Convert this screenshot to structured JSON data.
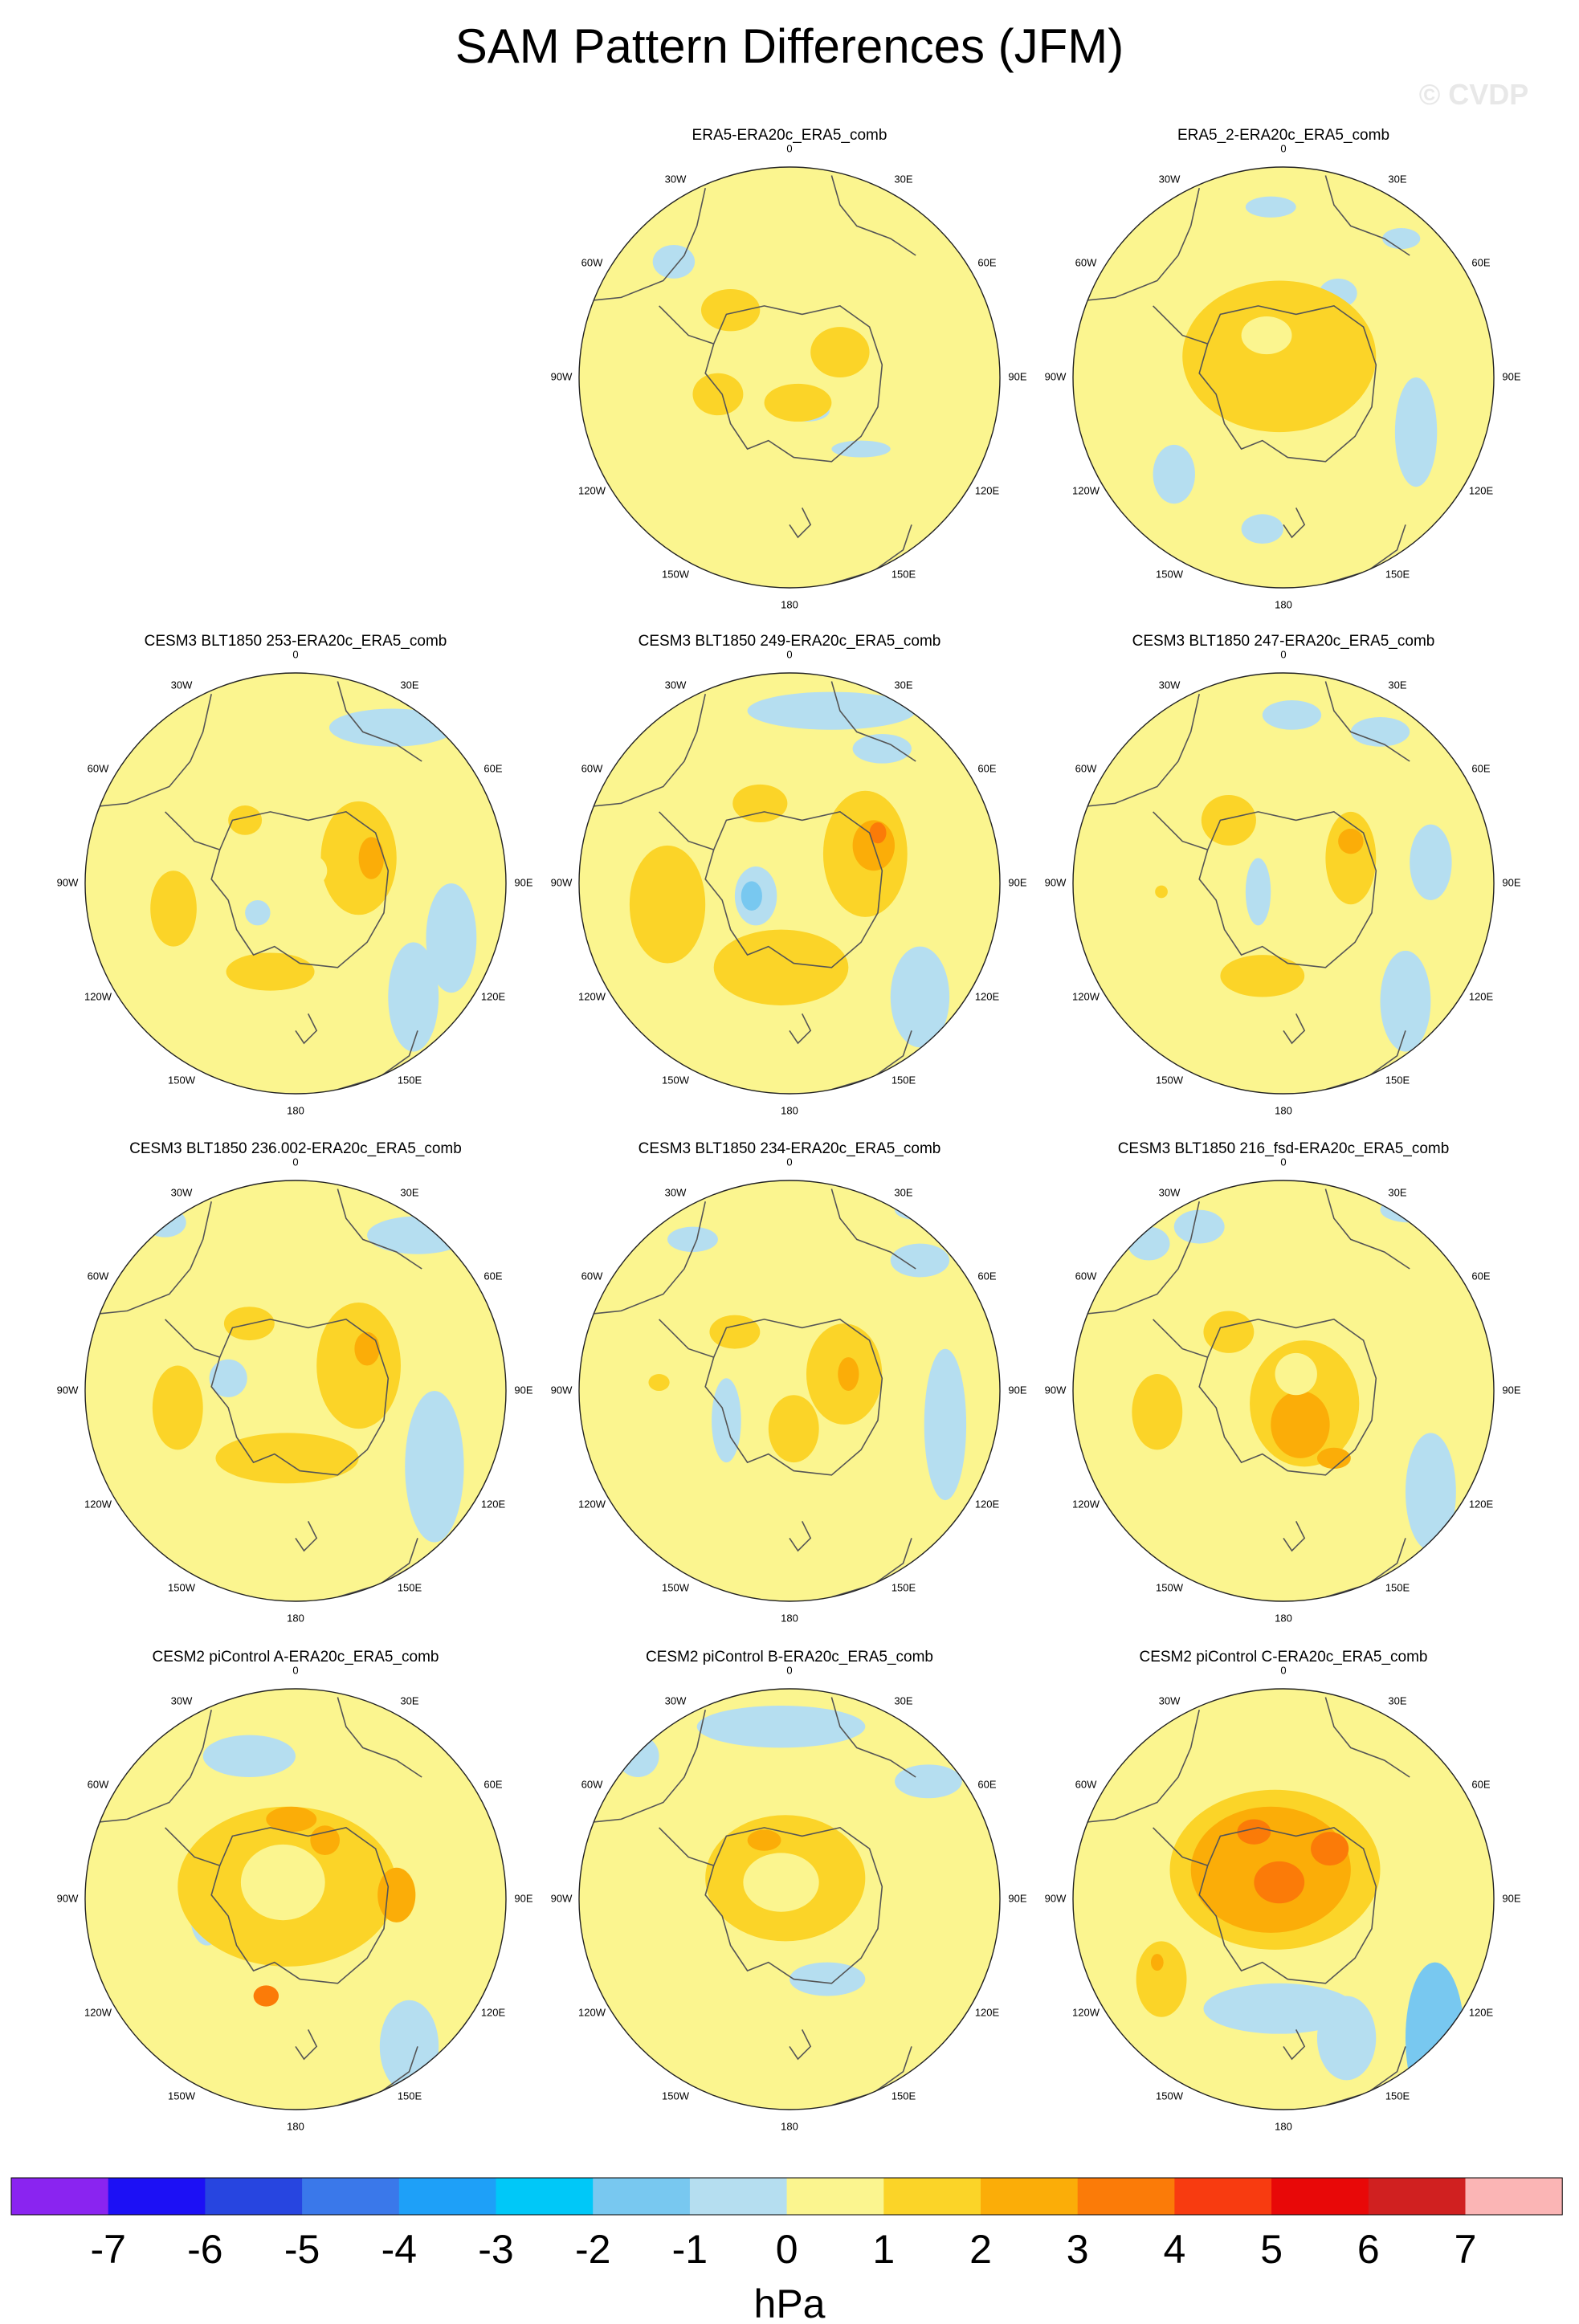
{
  "figure": {
    "title": "SAM Pattern Differences (JFM)",
    "watermark": "© CVDP",
    "units": "hPa"
  },
  "colorbar": {
    "labels": [
      "-7",
      "-6",
      "-5",
      "-4",
      "-3",
      "-2",
      "-1",
      "0",
      "1",
      "2",
      "3",
      "4",
      "5",
      "6",
      "7"
    ],
    "colors": [
      "#8a24f0",
      "#1c10f5",
      "#2745e0",
      "#3a78ea",
      "#1ea0f8",
      "#00c8f8",
      "#78c8f0",
      "#b5def0",
      "#fbf58f",
      "#fbd428",
      "#fbad08",
      "#fb7b08",
      "#f83b10",
      "#e80808",
      "#d02020",
      "#fbb5b5"
    ]
  },
  "lon_labels": [
    "0",
    "30E",
    "60E",
    "90E",
    "120E",
    "150E",
    "180",
    "150W",
    "120W",
    "90W",
    "60W",
    "30W"
  ],
  "panels": [
    {
      "title": "",
      "empty": true
    },
    {
      "title": "ERA5-ERA20c_ERA5_comb",
      "blobs": [
        [
          "b",
          -55,
          -55,
          10,
          8
        ],
        [
          "b",
          8,
          16,
          11,
          5
        ],
        [
          "b",
          34,
          34,
          14,
          4
        ],
        [
          "p",
          -14,
          -50,
          7,
          5
        ],
        [
          "o",
          -34,
          8,
          12,
          10
        ],
        [
          "o",
          24,
          -12,
          14,
          12
        ],
        [
          "o",
          -28,
          -32,
          14,
          10
        ],
        [
          "o",
          4,
          12,
          16,
          9
        ],
        [
          "p",
          3,
          -4,
          7,
          7
        ]
      ]
    },
    {
      "title": "ERA5_2-ERA20c_ERA5_comb",
      "blobs": [
        [
          "b",
          -52,
          46,
          10,
          14
        ],
        [
          "b",
          26,
          -40,
          9,
          7
        ],
        [
          "b",
          63,
          26,
          10,
          26
        ],
        [
          "b",
          -6,
          -81,
          12,
          5
        ],
        [
          "b",
          -10,
          72,
          10,
          7
        ],
        [
          "b",
          56,
          -66,
          9,
          5
        ],
        [
          "o",
          -2,
          -10,
          46,
          36
        ],
        [
          "p",
          -8,
          -20,
          12,
          9
        ]
      ]
    },
    {
      "title": "CESM3 BLT1850 253-ERA20c_ERA5_comb",
      "blobs": [
        [
          "b",
          46,
          -74,
          30,
          9
        ],
        [
          "b",
          56,
          54,
          12,
          26
        ],
        [
          "b",
          74,
          26,
          12,
          26
        ],
        [
          "b",
          -18,
          14,
          6,
          6
        ],
        [
          "o",
          30,
          -12,
          18,
          27
        ],
        [
          "d",
          36,
          -12,
          6,
          10
        ],
        [
          "o",
          -58,
          12,
          11,
          18
        ],
        [
          "o",
          -12,
          42,
          21,
          9
        ],
        [
          "o",
          -24,
          -30,
          8,
          7
        ],
        [
          "p",
          6,
          -6,
          9,
          8
        ]
      ]
    },
    {
      "title": "CESM3 BLT1850 249-ERA20c_ERA5_comb",
      "blobs": [
        [
          "b",
          20,
          -82,
          40,
          9
        ],
        [
          "b",
          62,
          54,
          14,
          24
        ],
        [
          "b",
          -16,
          6,
          10,
          14
        ],
        [
          "c",
          -18,
          6,
          5,
          7
        ],
        [
          "b",
          44,
          -64,
          14,
          7
        ],
        [
          "o",
          36,
          -14,
          20,
          30
        ],
        [
          "d",
          40,
          -18,
          10,
          12
        ],
        [
          "r",
          42,
          -24,
          4,
          5
        ],
        [
          "o",
          -58,
          10,
          18,
          28
        ],
        [
          "o",
          -14,
          -38,
          13,
          9
        ],
        [
          "o",
          -4,
          40,
          32,
          18
        ]
      ]
    },
    {
      "title": "CESM3 BLT1850 247-ERA20c_ERA5_comb",
      "blobs": [
        [
          "b",
          58,
          56,
          12,
          24
        ],
        [
          "b",
          70,
          -10,
          10,
          18
        ],
        [
          "b",
          -12,
          4,
          6,
          16
        ],
        [
          "b",
          4,
          -80,
          14,
          7
        ],
        [
          "b",
          46,
          -72,
          14,
          7
        ],
        [
          "o",
          32,
          -12,
          12,
          22
        ],
        [
          "d",
          32,
          -20,
          6,
          6
        ],
        [
          "o",
          -26,
          -30,
          13,
          12
        ],
        [
          "o",
          -10,
          44,
          20,
          10
        ],
        [
          "o",
          -58,
          4,
          3,
          3
        ]
      ]
    },
    {
      "title": "CESM3 BLT1850 236.002-ERA20c_ERA5_comb",
      "blobs": [
        [
          "b",
          58,
          -74,
          24,
          9
        ],
        [
          "b",
          66,
          36,
          14,
          36
        ],
        [
          "b",
          -62,
          -80,
          10,
          7
        ],
        [
          "b",
          -32,
          -6,
          9,
          9
        ],
        [
          "o",
          30,
          -12,
          20,
          30
        ],
        [
          "d",
          34,
          -20,
          6,
          8
        ],
        [
          "o",
          -22,
          -32,
          12,
          8
        ],
        [
          "o",
          -56,
          8,
          12,
          20
        ],
        [
          "o",
          -4,
          32,
          34,
          12
        ]
      ]
    },
    {
      "title": "CESM3 BLT1850 234-ERA20c_ERA5_comb",
      "blobs": [
        [
          "b",
          74,
          16,
          10,
          36
        ],
        [
          "b",
          62,
          -62,
          14,
          8
        ],
        [
          "b",
          -46,
          -72,
          12,
          6
        ],
        [
          "b",
          -30,
          14,
          7,
          20
        ],
        [
          "b",
          62,
          -86,
          12,
          5
        ],
        [
          "o",
          26,
          -8,
          18,
          24
        ],
        [
          "d",
          28,
          -8,
          5,
          8
        ],
        [
          "o",
          -26,
          -28,
          12,
          8
        ],
        [
          "o",
          2,
          18,
          12,
          16
        ],
        [
          "o",
          -62,
          -4,
          5,
          4
        ]
      ]
    },
    {
      "title": "CESM3 BLT1850 216_fsd-ERA20c_ERA5_comb",
      "blobs": [
        [
          "b",
          70,
          48,
          12,
          28
        ],
        [
          "b",
          -40,
          -78,
          12,
          8
        ],
        [
          "b",
          -64,
          -70,
          10,
          8
        ],
        [
          "b",
          60,
          -86,
          14,
          6
        ],
        [
          "o",
          -60,
          10,
          12,
          18
        ],
        [
          "o",
          10,
          6,
          26,
          30
        ],
        [
          "o",
          -26,
          -28,
          12,
          10
        ],
        [
          "d",
          8,
          16,
          14,
          16
        ],
        [
          "d",
          24,
          32,
          8,
          5
        ],
        [
          "p",
          6,
          -8,
          10,
          10
        ]
      ]
    },
    {
      "title": "CESM2 piControl A-ERA20c_ERA5_comb",
      "blobs": [
        [
          "b",
          54,
          70,
          14,
          22
        ],
        [
          "b",
          -22,
          -68,
          22,
          10
        ],
        [
          "b",
          -42,
          8,
          8,
          14
        ],
        [
          "c",
          -40,
          6,
          3,
          7
        ],
        [
          "o",
          -4,
          -6,
          52,
          38
        ],
        [
          "p",
          -6,
          -8,
          20,
          18
        ],
        [
          "d",
          48,
          -2,
          9,
          13
        ],
        [
          "d",
          -2,
          -38,
          12,
          6
        ],
        [
          "d",
          14,
          -28,
          7,
          7
        ],
        [
          "r",
          -14,
          46,
          6,
          5
        ]
      ]
    },
    {
      "title": "CESM2 piControl B-ERA20c_ERA5_comb",
      "blobs": [
        [
          "b",
          -4,
          -82,
          40,
          10
        ],
        [
          "b",
          -72,
          -68,
          10,
          10
        ],
        [
          "b",
          66,
          -56,
          16,
          8
        ],
        [
          "b",
          18,
          38,
          18,
          8
        ],
        [
          "o",
          -2,
          -10,
          38,
          30
        ],
        [
          "p",
          -4,
          -8,
          18,
          14
        ],
        [
          "d",
          -12,
          -28,
          8,
          5
        ]
      ]
    },
    {
      "title": "CESM2 piControl C-ERA20c_ERA5_comb",
      "blobs": [
        [
          "b",
          30,
          66,
          14,
          20
        ],
        [
          "c",
          72,
          66,
          14,
          36
        ],
        [
          "b",
          -2,
          52,
          36,
          12
        ],
        [
          "o",
          -4,
          -14,
          50,
          38
        ],
        [
          "d",
          -6,
          -14,
          38,
          30
        ],
        [
          "r",
          -14,
          -32,
          8,
          6
        ],
        [
          "r",
          22,
          -24,
          9,
          8
        ],
        [
          "r",
          -2,
          -8,
          12,
          10
        ],
        [
          "o",
          -58,
          38,
          12,
          18
        ],
        [
          "d",
          -60,
          30,
          3,
          4
        ]
      ]
    }
  ]
}
